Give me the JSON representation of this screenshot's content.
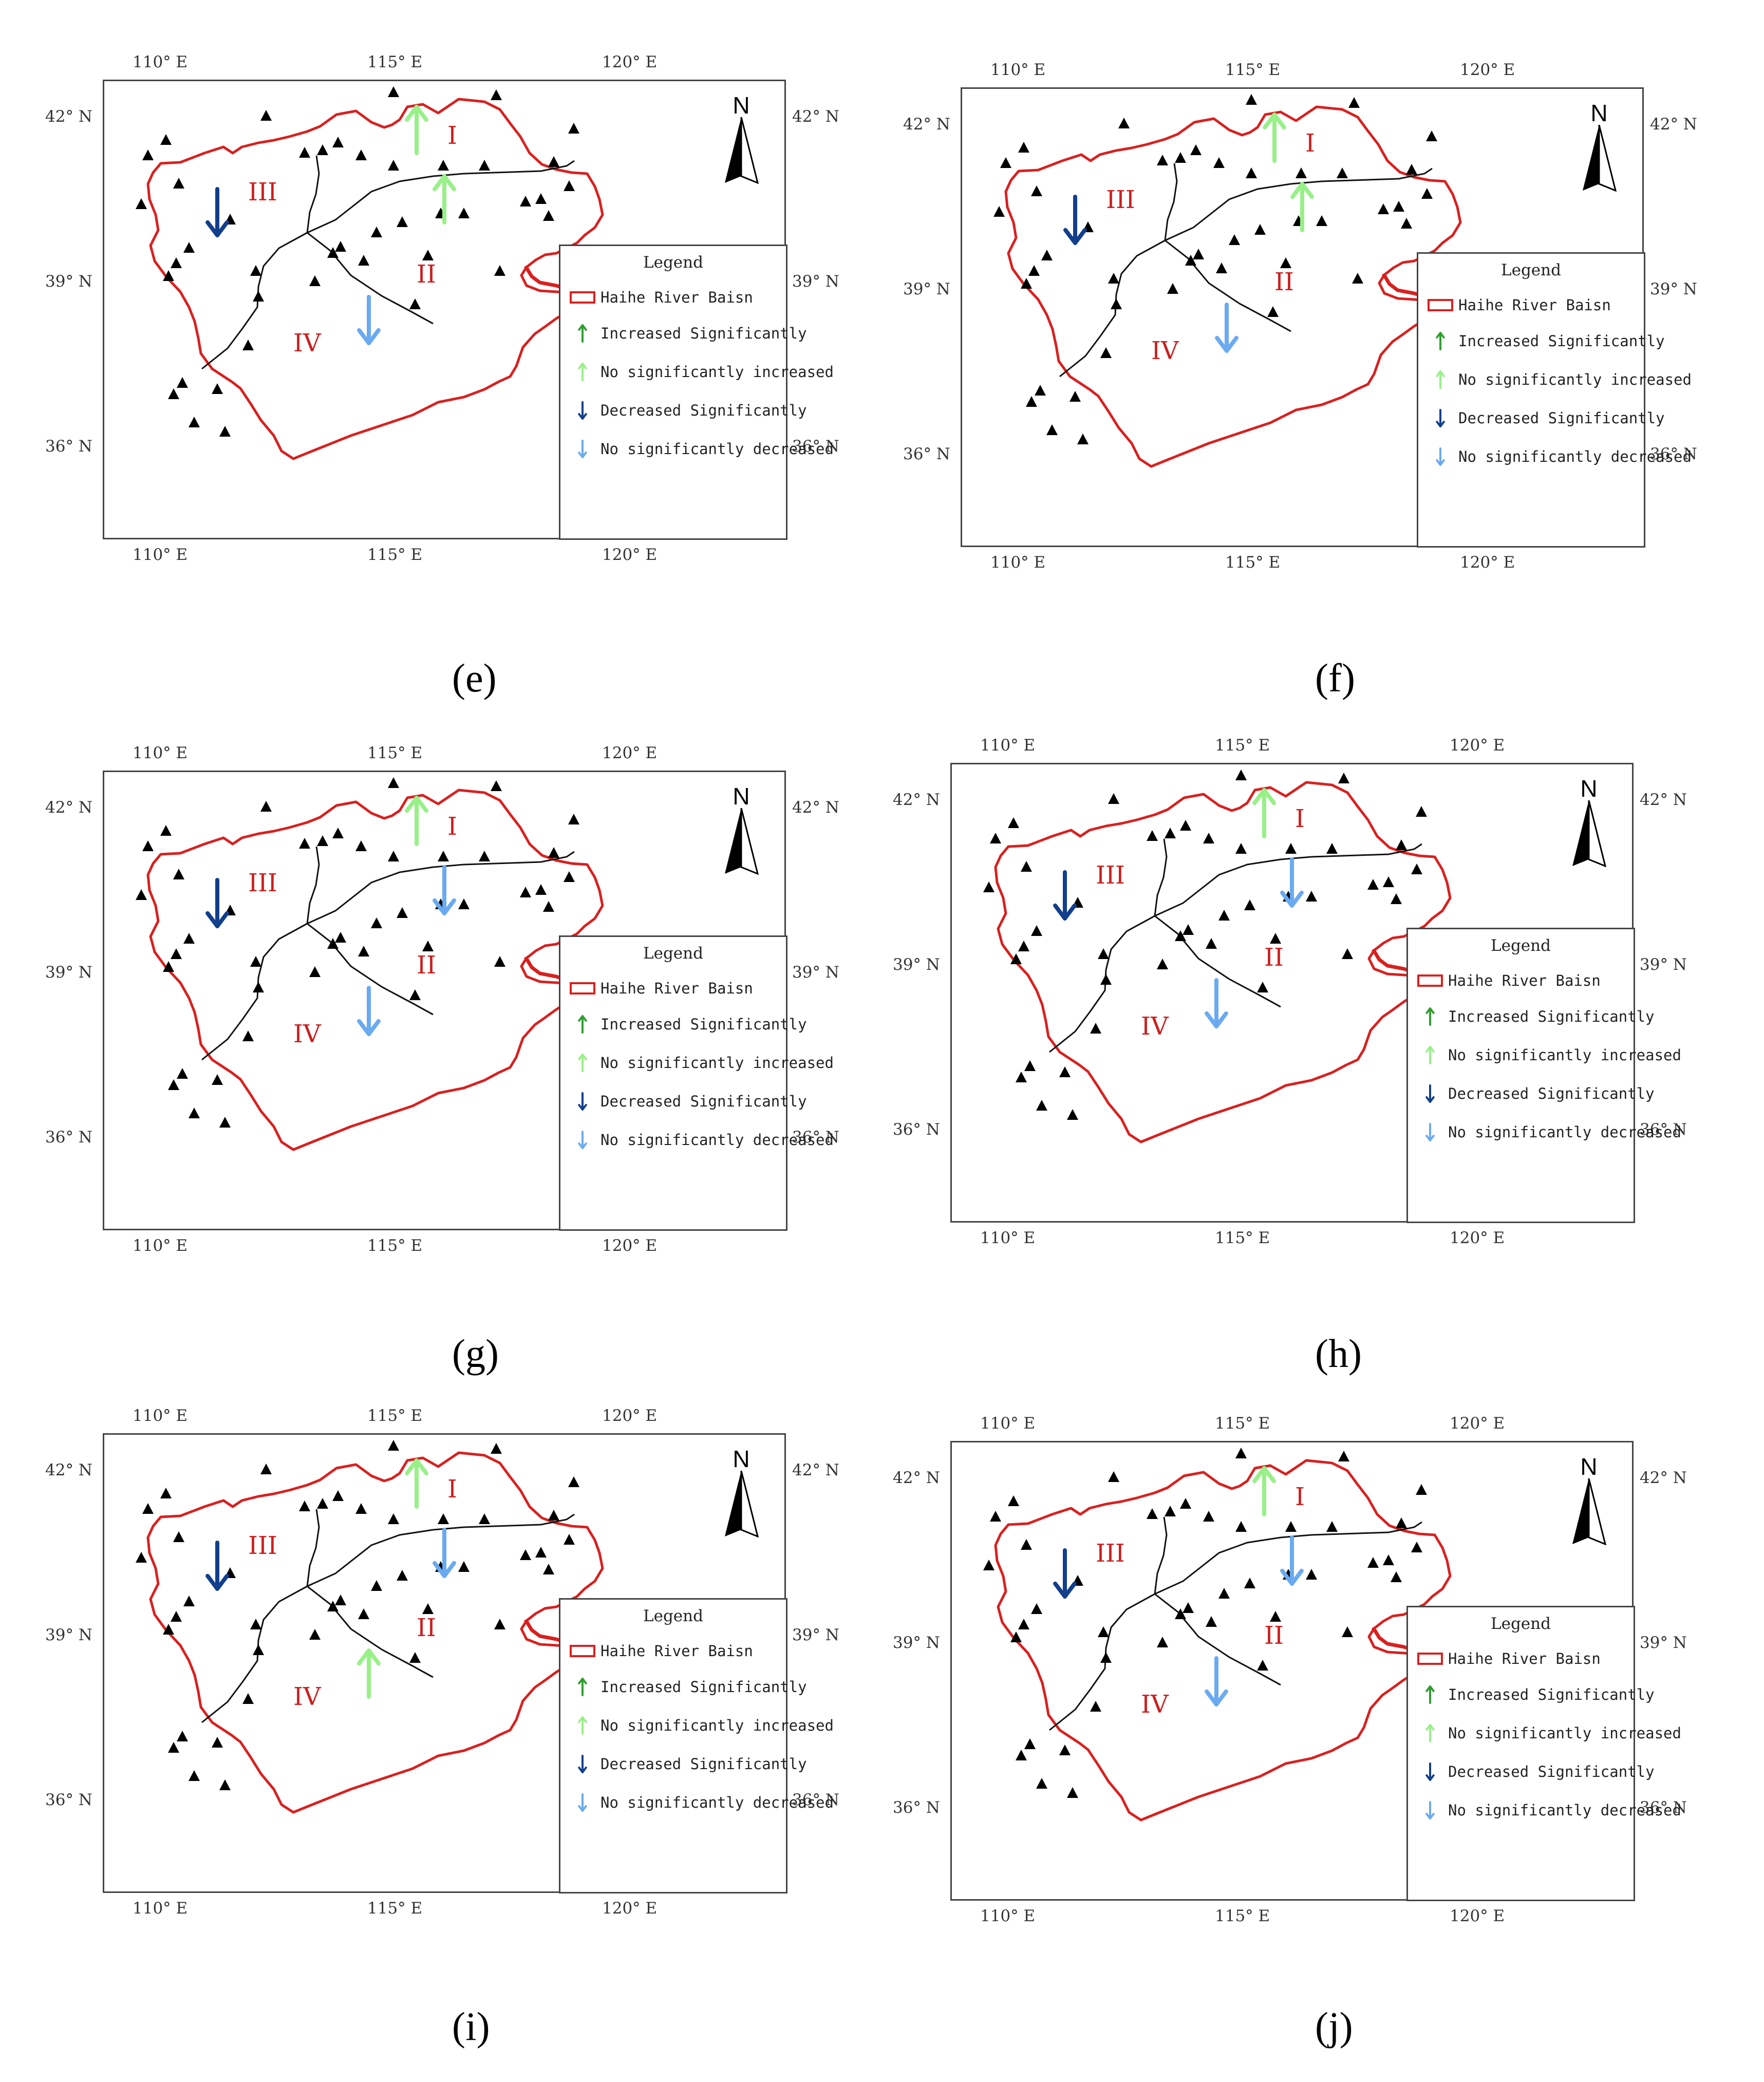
{
  "colors": {
    "basin": "#d9201f",
    "inc_sig": "#2f9e2f",
    "inc_non": "#98f088",
    "dec_sig": "#123f8c",
    "dec_non": "#6aaaf0",
    "station": "#000000"
  },
  "north_label": "N",
  "regions": [
    "I",
    "II",
    "III",
    "IV"
  ],
  "lon_ticks": [
    "110° E",
    "115° E",
    "120° E"
  ],
  "lat_ticks": [
    "42° N",
    "39° N",
    "36° N"
  ],
  "legend": {
    "title": "Legend",
    "items": [
      {
        "symbol": "basin-box",
        "label": "Haihe River Baisn"
      },
      {
        "symbol": "arrow-inc-sig",
        "label": "Increased Significantly"
      },
      {
        "symbol": "arrow-inc-non",
        "label": "No significantly increased"
      },
      {
        "symbol": "arrow-dec-sig",
        "label": "Decreased Significantly"
      },
      {
        "symbol": "arrow-dec-non",
        "label": "No significantly decreased"
      }
    ]
  },
  "panels": [
    {
      "caption": "(e)",
      "trends": {
        "I": "inc_non",
        "II": "inc_non",
        "III": "dec_sig",
        "IV": "dec_non"
      }
    },
    {
      "caption": "(f)",
      "trends": {
        "I": "inc_non",
        "II": "inc_non",
        "III": "dec_sig",
        "IV": "dec_non"
      }
    },
    {
      "caption": "(g)",
      "trends": {
        "I": "inc_non",
        "II": "dec_non",
        "III": "dec_sig",
        "IV": "dec_non"
      }
    },
    {
      "caption": "(h)",
      "trends": {
        "I": "inc_non",
        "II": "dec_non",
        "III": "dec_sig",
        "IV": "dec_non"
      }
    },
    {
      "caption": "(i)",
      "trends": {
        "I": "inc_non",
        "II": "dec_non",
        "III": "dec_sig",
        "IV": "inc_non"
      }
    },
    {
      "caption": "(j)",
      "trends": {
        "I": "inc_non",
        "II": "dec_non",
        "III": "dec_sig",
        "IV": "dec_non"
      }
    }
  ]
}
